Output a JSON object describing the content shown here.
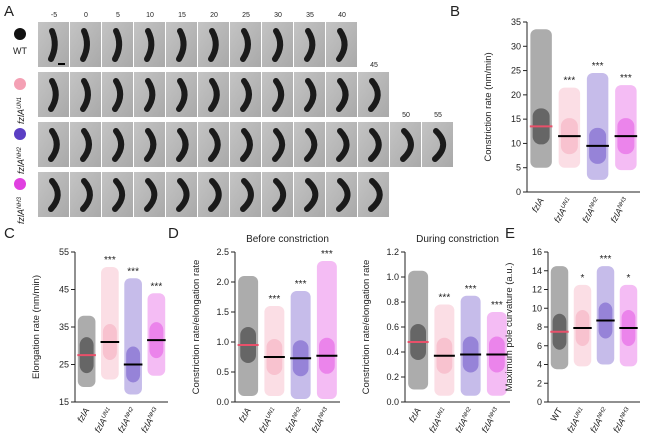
{
  "panel_a": {
    "label": "A",
    "time_labels": [
      -5,
      0,
      5,
      10,
      15,
      20,
      25,
      30,
      35,
      40,
      45,
      50,
      55
    ],
    "strains": [
      {
        "name": "WT"
      },
      {
        "name": "fzlA",
        "superscript": "UN1"
      },
      {
        "name": "fzlA",
        "superscript": "NH2"
      },
      {
        "name": "fzlA",
        "superscript": "NH3"
      }
    ]
  },
  "chart_data": [
    {
      "type": "strip",
      "label": "B",
      "ylabel": "Constriction rate (nm/min)",
      "categories": [
        "fzlA",
        "fzlA",
        "fzlA",
        "fzlA"
      ],
      "category_superscripts": [
        null,
        "UN1",
        "NH2",
        "NH3"
      ],
      "colors": [
        "#111111",
        "#f4a0b4",
        "#5b3fc4",
        "#e040e0"
      ],
      "medians": [
        13.5,
        11.5,
        9.5,
        11.5
      ],
      "ranges": [
        [
          5,
          33.5
        ],
        [
          5,
          21.5
        ],
        [
          2.5,
          24.5
        ],
        [
          4.5,
          22
        ]
      ],
      "significance": [
        null,
        "***",
        "***",
        "***"
      ],
      "ylim": [
        0,
        35
      ],
      "yticks": [
        0,
        5,
        10,
        15,
        20,
        25,
        30,
        35
      ]
    },
    {
      "type": "strip",
      "label": "C",
      "ylabel": "Elongation rate (nm/min)",
      "categories": [
        "fzlA",
        "fzlA",
        "fzlA",
        "fzlA"
      ],
      "category_superscripts": [
        null,
        "UN1",
        "NH2",
        "NH3"
      ],
      "colors": [
        "#111111",
        "#f4a0b4",
        "#5b3fc4",
        "#e040e0"
      ],
      "medians": [
        27.5,
        31,
        25,
        31.5
      ],
      "ranges": [
        [
          19,
          38
        ],
        [
          21,
          51
        ],
        [
          17,
          48
        ],
        [
          22,
          44
        ]
      ],
      "significance": [
        null,
        "***",
        "***",
        "***"
      ],
      "ylim": [
        15,
        55
      ],
      "yticks": [
        15,
        25,
        35,
        45,
        55
      ]
    },
    {
      "type": "strip",
      "label": "D",
      "title": "Before constriction",
      "ylabel": "Constriction rate/elongation rate",
      "categories": [
        "fzlA",
        "fzlA",
        "fzlA",
        "fzlA"
      ],
      "category_superscripts": [
        null,
        "UN1",
        "NH2",
        "NH3"
      ],
      "colors": [
        "#111111",
        "#f4a0b4",
        "#5b3fc4",
        "#e040e0"
      ],
      "medians": [
        0.95,
        0.75,
        0.73,
        0.77
      ],
      "ranges": [
        [
          0.1,
          2.1
        ],
        [
          0.1,
          1.6
        ],
        [
          0.05,
          1.85
        ],
        [
          0.05,
          2.35
        ]
      ],
      "significance": [
        null,
        "***",
        "***",
        "***"
      ],
      "ylim": [
        0,
        2.5
      ],
      "yticks": [
        {
          "value": 0,
          "label": "0.0"
        },
        0.5,
        {
          "value": 1,
          "label": "1.0"
        },
        1.5,
        {
          "value": 2,
          "label": "2.0"
        },
        2.5
      ]
    },
    {
      "type": "strip",
      "title": "During constriction",
      "ylabel": "Constriction rate/elongation rate",
      "categories": [
        "fzlA",
        "fzlA",
        "fzlA",
        "fzlA"
      ],
      "category_superscripts": [
        null,
        "UN1",
        "NH2",
        "NH3"
      ],
      "colors": [
        "#111111",
        "#f4a0b4",
        "#5b3fc4",
        "#e040e0"
      ],
      "medians": [
        0.48,
        0.37,
        0.38,
        0.38
      ],
      "ranges": [
        [
          0.1,
          1.05
        ],
        [
          0.05,
          0.78
        ],
        [
          0.05,
          0.85
        ],
        [
          0.05,
          0.72
        ]
      ],
      "significance": [
        null,
        "***",
        "***",
        "***"
      ],
      "ylim": [
        0,
        1.2
      ],
      "yticks": [
        {
          "value": 0,
          "label": "0.0"
        },
        0.2,
        0.4,
        0.6,
        0.8,
        {
          "value": 1,
          "label": "1.0"
        },
        1.2
      ]
    },
    {
      "type": "strip",
      "label": "E",
      "ylabel": "Maximum pole curvature (a.u.)",
      "categories": [
        "WT",
        "fzlA",
        "fzlA",
        "fzlA"
      ],
      "category_superscripts": [
        null,
        "UN1",
        "NH2",
        "NH3"
      ],
      "colors": [
        "#111111",
        "#f4a0b4",
        "#5b3fc4",
        "#e040e0"
      ],
      "medians": [
        7.5,
        7.9,
        8.7,
        7.9
      ],
      "ranges": [
        [
          3.5,
          14.5
        ],
        [
          3.8,
          12.5
        ],
        [
          4,
          14.5
        ],
        [
          3.8,
          12.5
        ]
      ],
      "significance": [
        null,
        "*",
        "***",
        "*"
      ],
      "ylim": [
        0,
        16
      ],
      "yticks": [
        0,
        2,
        4,
        6,
        8,
        10,
        12,
        14,
        16
      ]
    }
  ]
}
